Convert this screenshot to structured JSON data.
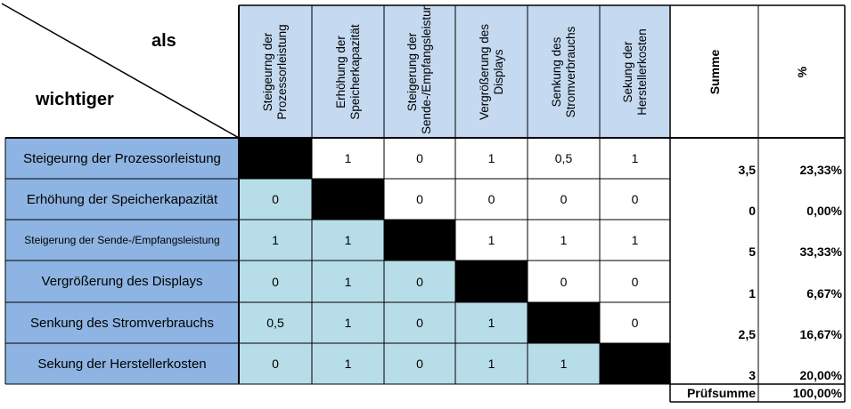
{
  "corner": {
    "top_label": "als",
    "bottom_label": "wichtiger"
  },
  "columns": [
    "Steigeurng der Prozessorleistung",
    "Erhöhung der Speicherkapazität",
    "Steigerung der Sende-/Empfangsleistung",
    "Vergrößerung des Displays",
    "Senkung des Stromverbrauchs",
    "Sekung der Herstellerkosten"
  ],
  "sum_header": "Summe",
  "percent_header": "%",
  "rows": [
    {
      "label": "Steigeurng der Prozessorleistung",
      "values": [
        "",
        "1",
        "0",
        "1",
        "0,5",
        "1"
      ],
      "sum": "3,5",
      "percent": "23,33%"
    },
    {
      "label": "Erhöhung der Speicherkapazität",
      "values": [
        "0",
        "",
        "0",
        "0",
        "0",
        "0"
      ],
      "sum": "0",
      "percent": "0,00%"
    },
    {
      "label": "Steigerung der Sende-/Empfangsleistung",
      "values": [
        "1",
        "1",
        "",
        "1",
        "1",
        "1"
      ],
      "sum": "5",
      "percent": "33,33%"
    },
    {
      "label": "Vergrößerung des Displays",
      "values": [
        "0",
        "1",
        "0",
        "",
        "0",
        "0"
      ],
      "sum": "1",
      "percent": "6,67%"
    },
    {
      "label": "Senkung des Stromverbrauchs",
      "values": [
        "0,5",
        "1",
        "0",
        "1",
        "",
        "0"
      ],
      "sum": "2,5",
      "percent": "16,67%"
    },
    {
      "label": "Sekung der Herstellerkosten",
      "values": [
        "0",
        "1",
        "0",
        "1",
        "1",
        ""
      ],
      "sum": "3",
      "percent": "20,00%"
    }
  ],
  "footer": {
    "label": "Prüfsumme",
    "value": "100,00%"
  },
  "colors": {
    "row_header": "#8db4e2",
    "col_header": "#c5d9f1",
    "lower_cell": "#b7dde8",
    "diagonal": "#000000"
  }
}
